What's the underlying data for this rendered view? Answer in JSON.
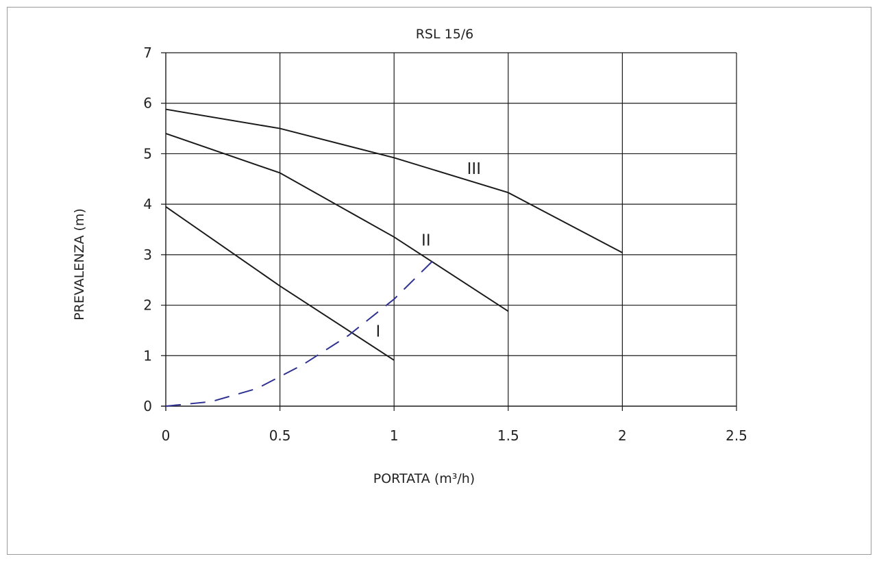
{
  "chart_data": {
    "type": "line",
    "title": "RSL 15/6",
    "xlabel": "PORTATA (m³/h)",
    "ylabel": "PREVALENZA (m)",
    "xlim": [
      0,
      2.5
    ],
    "ylim": [
      0,
      7
    ],
    "x_ticks": [
      0,
      0.5,
      1,
      1.5,
      2,
      2.5
    ],
    "x_tick_labels": [
      "0",
      "0.5",
      "1",
      "1.5",
      "2",
      "2.5"
    ],
    "y_ticks": [
      0,
      1,
      2,
      3,
      4,
      5,
      6,
      7
    ],
    "y_tick_labels": [
      "0",
      "1",
      "2",
      "3",
      "4",
      "5",
      "6",
      "7"
    ],
    "grid": true,
    "series": [
      {
        "name": "I",
        "style": "solid",
        "color": "#1a1a1a",
        "points": [
          [
            0,
            3.95
          ],
          [
            0.5,
            2.38
          ],
          [
            1.0,
            0.91
          ]
        ],
        "label_at": [
          0.93,
          1.38
        ]
      },
      {
        "name": "II",
        "style": "solid",
        "color": "#1a1a1a",
        "points": [
          [
            0,
            5.4
          ],
          [
            0.5,
            4.62
          ],
          [
            1.0,
            3.35
          ],
          [
            1.5,
            1.88
          ]
        ],
        "label_at": [
          1.14,
          3.18
        ]
      },
      {
        "name": "III",
        "style": "solid",
        "color": "#1a1a1a",
        "points": [
          [
            0,
            5.88
          ],
          [
            0.5,
            5.5
          ],
          [
            1.0,
            4.92
          ],
          [
            1.5,
            4.23
          ],
          [
            2.0,
            3.04
          ]
        ],
        "label_at": [
          1.35,
          4.6
        ]
      },
      {
        "style": "dashed",
        "color": "#2e3192",
        "points": [
          [
            0,
            0
          ],
          [
            0.2,
            0.09
          ],
          [
            0.4,
            0.35
          ],
          [
            0.6,
            0.82
          ],
          [
            0.8,
            1.4
          ],
          [
            1.0,
            2.12
          ],
          [
            1.17,
            2.88
          ]
        ]
      }
    ]
  }
}
